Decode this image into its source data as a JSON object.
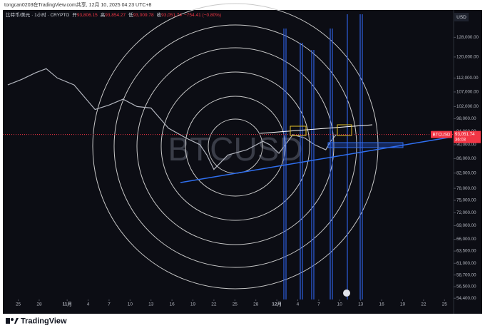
{
  "caption": "tongcan0203在TradingView.com共享, 12月 10, 2025 04:23 UTC+8",
  "footer": {
    "brand": "TradingView"
  },
  "chart_data": {
    "type": "line",
    "title": "比特币/美元 · 1小时 · CRYPTO",
    "ohlc": [
      {
        "label": "开",
        "value": "93,806.15"
      },
      {
        "label": "高",
        "value": "93,854.27"
      },
      {
        "label": "低",
        "value": "93,009.78"
      },
      {
        "label": "收",
        "value": "93,051.74"
      }
    ],
    "change": "−754.41 (−0.80%)",
    "currency": "USD",
    "symbol": "BTCUSD",
    "last_price": {
      "value": 93051.74,
      "label": "93,051.74"
    },
    "countdown": "36:03",
    "log_scale": true,
    "x": [
      -1.5,
      0.5,
      2.5,
      4,
      5.6,
      8,
      11,
      13,
      15,
      17,
      19,
      21.5,
      24,
      26,
      27,
      28,
      29,
      30,
      32.7,
      35,
      36,
      37.3,
      39.3,
      41,
      42.4,
      44,
      44.7,
      45.5
    ],
    "series": [
      {
        "name": "BTCUSD",
        "color": "#b2b5be",
        "values": [
          109500,
          111500,
          114000,
          115500,
          112000,
          109500,
          101000,
          102500,
          104500,
          102000,
          101500,
          95000,
          92000,
          90000,
          87000,
          83000,
          85000,
          87000,
          88500,
          91000,
          90000,
          87500,
          93000,
          92000,
          90000,
          88500,
          91000,
          93052
        ]
      }
    ],
    "xlim": [
      -2.2,
      62.3
    ],
    "xticks": [
      {
        "value": 0,
        "label": "25"
      },
      {
        "value": 3,
        "label": "28"
      },
      {
        "value": 7,
        "label": "11月"
      },
      {
        "value": 10,
        "label": "4"
      },
      {
        "value": 13,
        "label": "7"
      },
      {
        "value": 16,
        "label": "10"
      },
      {
        "value": 19,
        "label": "13"
      },
      {
        "value": 22,
        "label": "16"
      },
      {
        "value": 25,
        "label": "19"
      },
      {
        "value": 28,
        "label": "22"
      },
      {
        "value": 31,
        "label": "25"
      },
      {
        "value": 34,
        "label": "28"
      },
      {
        "value": 37,
        "label": "12月"
      },
      {
        "value": 40,
        "label": "4"
      },
      {
        "value": 43,
        "label": "7"
      },
      {
        "value": 46,
        "label": "10"
      },
      {
        "value": 49,
        "label": "13"
      },
      {
        "value": 52,
        "label": "16"
      },
      {
        "value": 55,
        "label": "19"
      },
      {
        "value": 58,
        "label": "22"
      },
      {
        "value": 61,
        "label": "25"
      }
    ],
    "ylim": [
      51700,
      140000
    ],
    "yticks": [
      {
        "value": 128000,
        "label": "128,000.00"
      },
      {
        "value": 120000,
        "label": "120,000.00"
      },
      {
        "value": 112000,
        "label": "112,000.00"
      },
      {
        "value": 107000,
        "label": "107,000.00"
      },
      {
        "value": 102000,
        "label": "102,000.00"
      },
      {
        "value": 98000,
        "label": "98,000.00"
      },
      {
        "value": 94000,
        "label": "94,000.00"
      },
      {
        "value": 90000,
        "label": "90,000.00"
      },
      {
        "value": 86000,
        "label": "86,000.00"
      },
      {
        "value": 82000,
        "label": "82,000.00"
      },
      {
        "value": 78000,
        "label": "78,000.00"
      },
      {
        "value": 75000,
        "label": "75,000.00"
      },
      {
        "value": 72000,
        "label": "72,000.00"
      },
      {
        "value": 69000,
        "label": "69,000.00"
      },
      {
        "value": 66000,
        "label": "66,000.00"
      },
      {
        "value": 63500,
        "label": "63,500.00"
      },
      {
        "value": 61000,
        "label": "61,000.00"
      },
      {
        "value": 58700,
        "label": "58,700.00"
      },
      {
        "value": 56500,
        "label": "56,500.00"
      },
      {
        "value": 54400,
        "label": "54,400.00"
      }
    ]
  }
}
